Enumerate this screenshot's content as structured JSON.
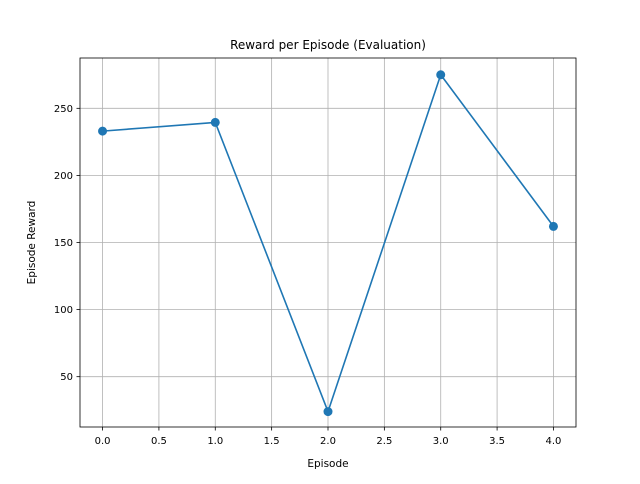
{
  "chart_data": {
    "type": "line",
    "title": "Reward per Episode (Evaluation)",
    "xlabel": "Episode",
    "ylabel": "Episode Reward",
    "x": [
      0,
      1,
      2,
      3,
      4
    ],
    "series": [
      {
        "values": [
          233,
          239.5,
          24,
          275,
          162
        ],
        "color": "#1f77b4",
        "marker": "circle"
      }
    ],
    "xlim": [
      -0.2,
      4.2
    ],
    "ylim": [
      12.5,
      287.5
    ],
    "xticks": [
      0.0,
      0.5,
      1.0,
      1.5,
      2.0,
      2.5,
      3.0,
      3.5,
      4.0
    ],
    "xtick_labels": [
      "0.0",
      "0.5",
      "1.0",
      "1.5",
      "2.0",
      "2.5",
      "3.0",
      "3.5",
      "4.0"
    ],
    "yticks": [
      50,
      100,
      150,
      200,
      250
    ],
    "ytick_labels": [
      "50",
      "100",
      "150",
      "200",
      "250"
    ],
    "grid": true,
    "legend": false
  }
}
